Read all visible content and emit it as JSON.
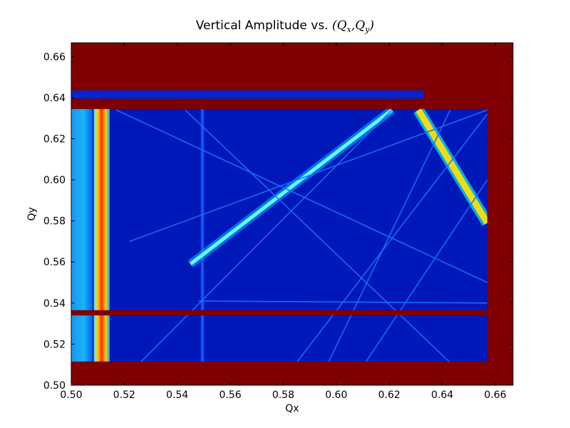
{
  "chart_data": {
    "type": "heatmap",
    "title": "Vertical Amplitude vs. ",
    "title_math": {
      "open": "(",
      "var1": "Q",
      "sub1": "x",
      "sep": ",",
      "var2": "Q",
      "sub2": "y",
      "close": ")"
    },
    "xlabel": "Qx",
    "ylabel": "Qy",
    "xlim": [
      0.5,
      0.6667
    ],
    "ylim": [
      0.5,
      0.6667
    ],
    "xticks": [
      "0.50",
      "0.52",
      "0.54",
      "0.56",
      "0.58",
      "0.60",
      "0.62",
      "0.64",
      "0.66"
    ],
    "yticks": [
      "0.50",
      "0.52",
      "0.54",
      "0.56",
      "0.58",
      "0.60",
      "0.62",
      "0.64",
      "0.66"
    ],
    "colormap": "jet",
    "background_color": "#7f0000",
    "regions": {
      "upper_block": {
        "x": [
          0.5,
          0.657
        ],
        "y": [
          0.5365,
          0.6345
        ]
      },
      "lower_block": {
        "x": [
          0.5,
          0.657
        ],
        "y": [
          0.5115,
          0.534
        ]
      },
      "top_strip": {
        "x": [
          0.5,
          0.633
        ],
        "y": [
          0.6395,
          0.6435
        ]
      }
    },
    "vertical_bands": [
      {
        "x": 0.5115,
        "width": 0.006,
        "value": "peak"
      },
      {
        "x": 0.5495,
        "width": 0.0012,
        "value": "low"
      }
    ],
    "resonance_lines": [
      {
        "x": [
          0.545,
          0.621
        ],
        "y": [
          0.559,
          0.634
        ],
        "intensity": "medium"
      },
      {
        "x": [
          0.631,
          0.657
        ],
        "y": [
          0.634,
          0.579
        ],
        "intensity": "high"
      },
      {
        "x": [
          0.517,
          0.657
        ],
        "y": [
          0.634,
          0.55
        ],
        "intensity": "low"
      },
      {
        "x": [
          0.522,
          0.657
        ],
        "y": [
          0.57,
          0.634
        ],
        "intensity": "low"
      },
      {
        "x": [
          0.526,
          0.621
        ],
        "y": [
          0.511,
          0.634
        ],
        "intensity": "low"
      },
      {
        "x": [
          0.543,
          0.643
        ],
        "y": [
          0.634,
          0.511
        ],
        "intensity": "low"
      },
      {
        "x": [
          0.585,
          0.657
        ],
        "y": [
          0.511,
          0.632
        ],
        "intensity": "low"
      },
      {
        "x": [
          0.597,
          0.643
        ],
        "y": [
          0.511,
          0.634
        ],
        "intensity": "low"
      },
      {
        "x": [
          0.611,
          0.657
        ],
        "y": [
          0.511,
          0.6
        ],
        "intensity": "low"
      },
      {
        "x": [
          0.548,
          0.657
        ],
        "y": [
          0.541,
          0.54
        ],
        "intensity": "low"
      }
    ]
  }
}
